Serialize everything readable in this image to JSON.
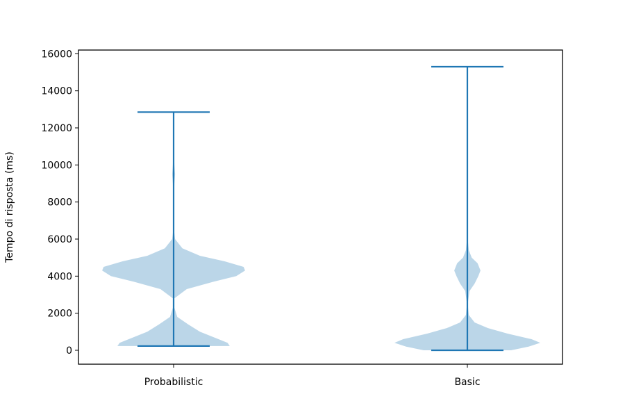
{
  "chart_data": {
    "type": "violin",
    "title": "",
    "xlabel": "",
    "ylabel": "Tempo di risposta (ms)",
    "categories": [
      "Probabilistic",
      "Basic"
    ],
    "ylim": [
      -750,
      16200
    ],
    "yticks": [
      0,
      2000,
      4000,
      6000,
      8000,
      10000,
      12000,
      14000,
      16000
    ],
    "grid": false,
    "colors": {
      "body": "#1f77b4",
      "body_opacity": 0.3,
      "lines": "#1f77b4"
    },
    "series": [
      {
        "category": "Probabilistic",
        "min": 230,
        "max": 12850,
        "density": [
          [
            230,
            0.77
          ],
          [
            400,
            0.74
          ],
          [
            700,
            0.55
          ],
          [
            1000,
            0.36
          ],
          [
            1400,
            0.2
          ],
          [
            1800,
            0.05
          ],
          [
            2300,
            0.01
          ],
          [
            2800,
            0.01
          ],
          [
            3300,
            0.18
          ],
          [
            3700,
            0.55
          ],
          [
            4000,
            0.86
          ],
          [
            4300,
            0.98
          ],
          [
            4500,
            0.96
          ],
          [
            4800,
            0.7
          ],
          [
            5100,
            0.36
          ],
          [
            5500,
            0.12
          ],
          [
            6000,
            0.02
          ],
          [
            6500,
            0.005
          ],
          [
            8000,
            0.003
          ],
          [
            9000,
            0.01
          ],
          [
            9500,
            0.02
          ],
          [
            10000,
            0.01
          ],
          [
            11000,
            0.002
          ],
          [
            12850,
            0.002
          ]
        ]
      },
      {
        "category": "Basic",
        "min": 0,
        "max": 15300,
        "density": [
          [
            0,
            0.6
          ],
          [
            200,
            0.84
          ],
          [
            400,
            1.0
          ],
          [
            600,
            0.88
          ],
          [
            900,
            0.55
          ],
          [
            1200,
            0.28
          ],
          [
            1500,
            0.1
          ],
          [
            1900,
            0.02
          ],
          [
            2500,
            0.005
          ],
          [
            3200,
            0.03
          ],
          [
            3600,
            0.1
          ],
          [
            4000,
            0.15
          ],
          [
            4300,
            0.18
          ],
          [
            4700,
            0.14
          ],
          [
            5000,
            0.06
          ],
          [
            5400,
            0.02
          ],
          [
            6000,
            0.005
          ],
          [
            7000,
            0.002
          ],
          [
            10000,
            0.002
          ],
          [
            12500,
            0.005
          ],
          [
            13000,
            0.01
          ],
          [
            13500,
            0.005
          ],
          [
            14500,
            0.002
          ],
          [
            15300,
            0.002
          ]
        ]
      }
    ]
  }
}
